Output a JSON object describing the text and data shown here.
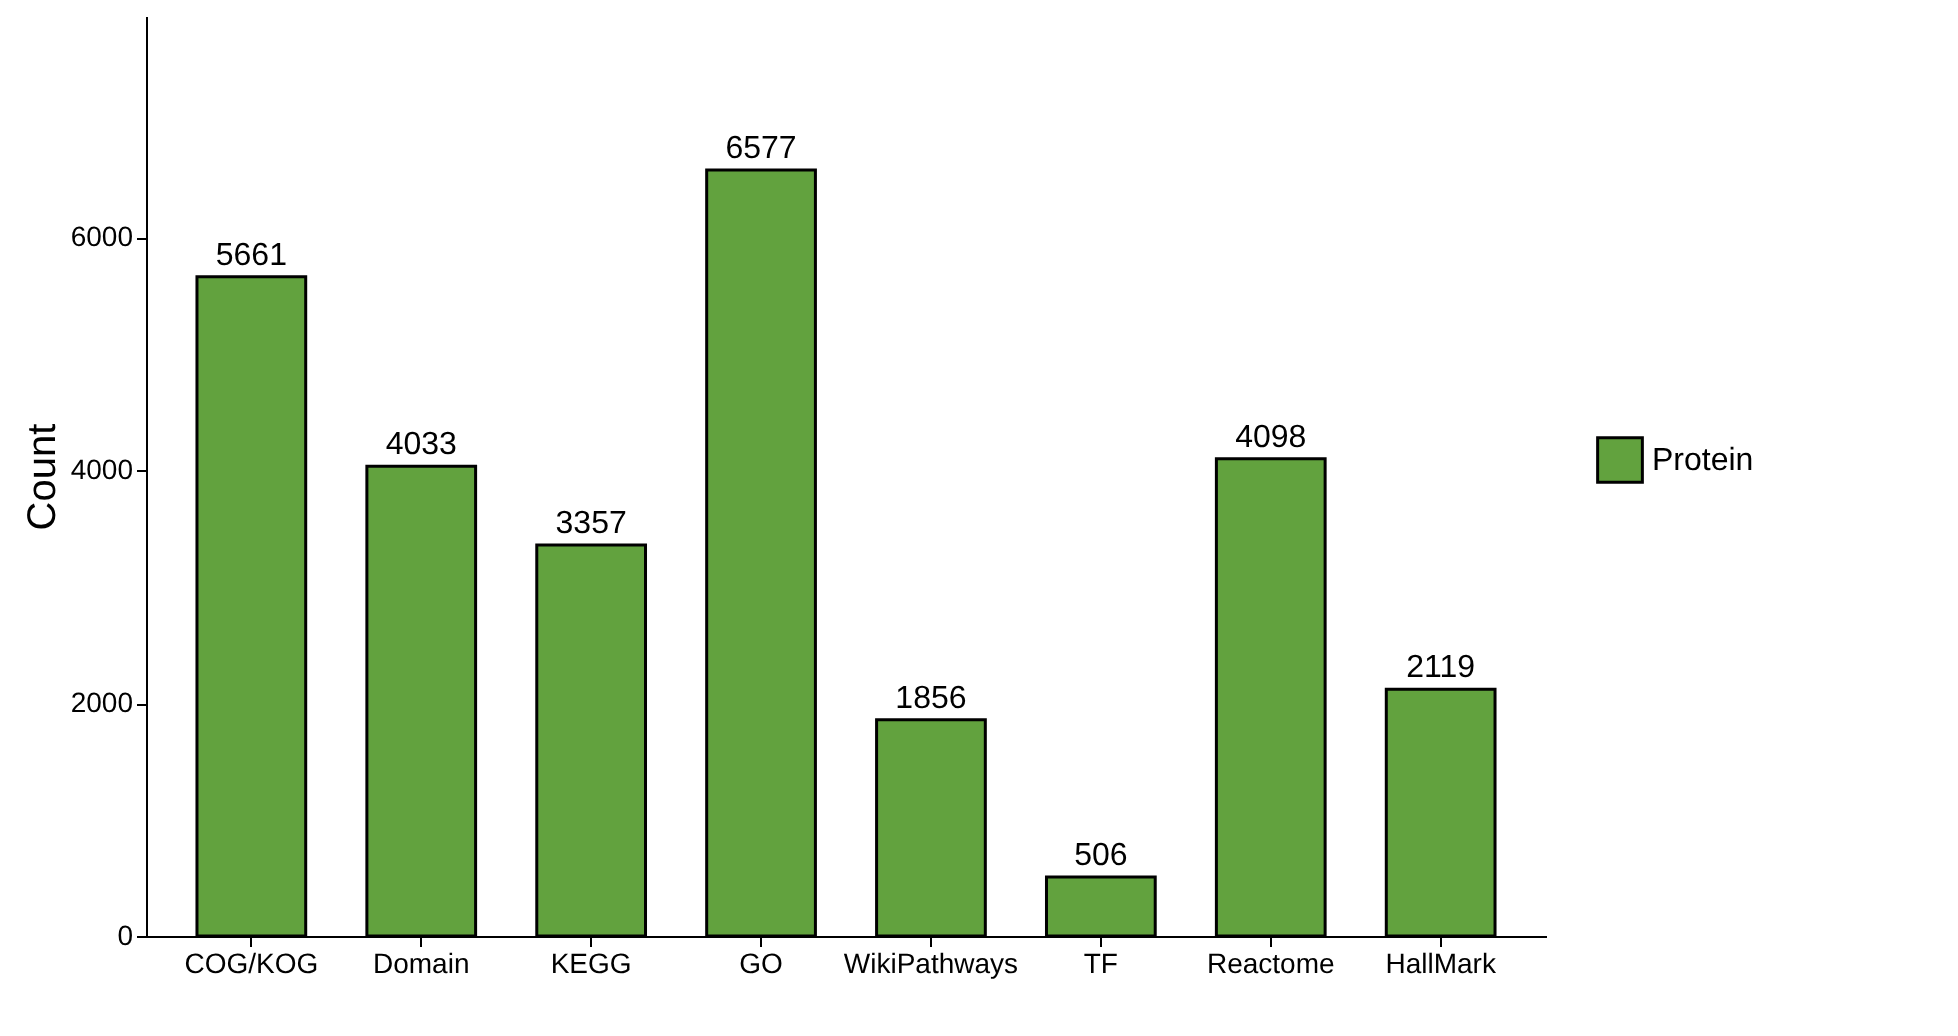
{
  "chart_data": {
    "type": "bar",
    "ylabel": "Count",
    "categories": [
      "COG/KOG",
      "Domain",
      "KEGG",
      "GO",
      "WikiPathways",
      "TF",
      "Reactome",
      "HallMark"
    ],
    "series": [
      {
        "name": "Protein",
        "color": "#62a23e",
        "values": [
          5661,
          4033,
          3357,
          6577,
          1856,
          506,
          4098,
          2119
        ]
      }
    ],
    "ylim": [
      0,
      7900
    ],
    "yticks": [
      0,
      2000,
      4000,
      6000
    ],
    "data_labels": true,
    "legend": "right",
    "grid": false
  }
}
